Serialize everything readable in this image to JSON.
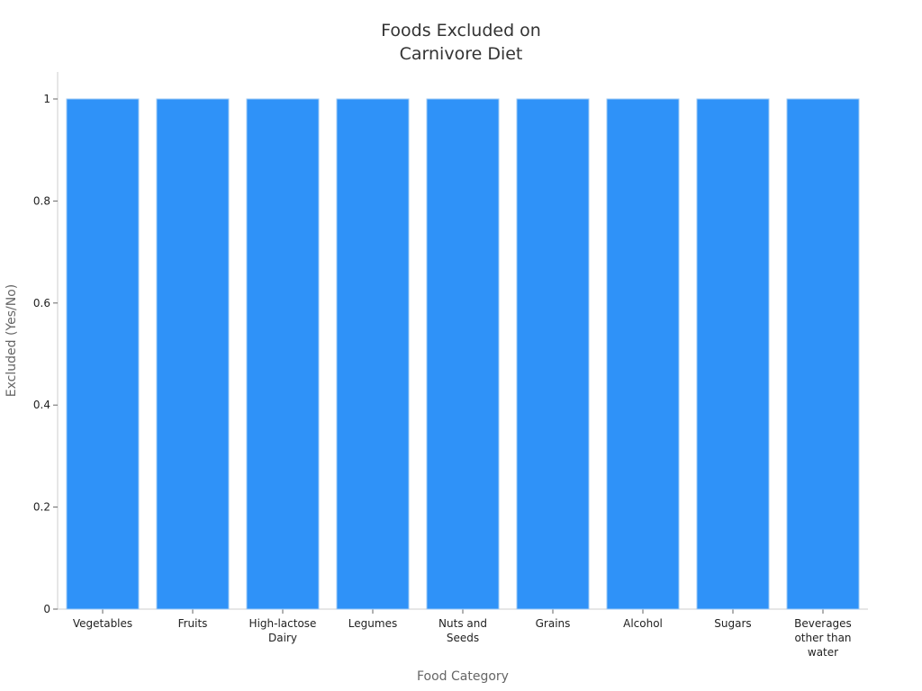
{
  "chart_data": {
    "type": "bar",
    "title": [
      "Foods Excluded on",
      "Carnivore Diet"
    ],
    "xlabel": "Food Category",
    "ylabel": "Excluded (Yes/No)",
    "categories": [
      [
        "Vegetables"
      ],
      [
        "Fruits"
      ],
      [
        "High-lactose",
        "Dairy"
      ],
      [
        "Legumes"
      ],
      [
        "Nuts and",
        "Seeds"
      ],
      [
        "Grains"
      ],
      [
        "Alcohol"
      ],
      [
        "Sugars"
      ],
      [
        "Beverages",
        "other than",
        "water"
      ]
    ],
    "values": [
      1,
      1,
      1,
      1,
      1,
      1,
      1,
      1,
      1
    ],
    "ylim": [
      0,
      1
    ],
    "yticks": [
      "0",
      "0.2",
      "0.4",
      "0.6",
      "0.8",
      "1"
    ],
    "bar_color": "#2f92f8",
    "grid": false,
    "legend": "none"
  }
}
